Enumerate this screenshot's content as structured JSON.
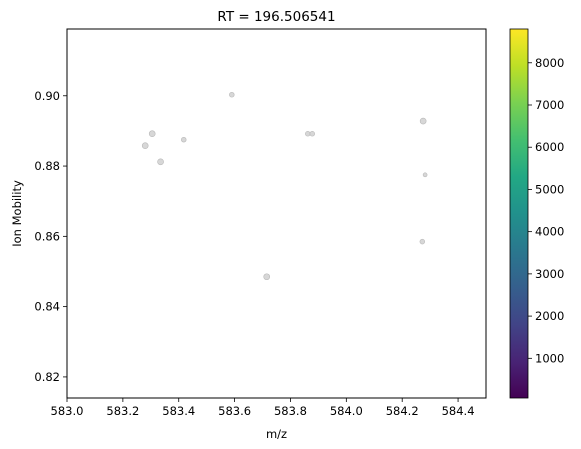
{
  "chart_data": {
    "type": "scatter",
    "title": "RT = 196.506541",
    "xlabel": "m/z",
    "ylabel": "Ion Mobility",
    "xlim": [
      583.0,
      584.5
    ],
    "ylim": [
      0.814,
      0.919
    ],
    "xticks": [
      "583.0",
      "583.2",
      "583.4",
      "583.6",
      "583.8",
      "584.0",
      "584.2",
      "584.4"
    ],
    "xtick_values": [
      583.0,
      583.2,
      583.4,
      583.6,
      583.8,
      584.0,
      584.2,
      584.4
    ],
    "yticks": [
      "0.82",
      "0.84",
      "0.86",
      "0.88",
      "0.90"
    ],
    "ytick_values": [
      0.82,
      0.84,
      0.86,
      0.88,
      0.9
    ],
    "grid": false,
    "points": [
      {
        "x": 583.28,
        "y": 0.8858,
        "size": 3.0
      },
      {
        "x": 583.305,
        "y": 0.8892,
        "size": 3.0
      },
      {
        "x": 583.335,
        "y": 0.8812,
        "size": 3.0
      },
      {
        "x": 583.418,
        "y": 0.8875,
        "size": 2.4
      },
      {
        "x": 583.59,
        "y": 0.9003,
        "size": 2.4
      },
      {
        "x": 583.715,
        "y": 0.8485,
        "size": 3.0
      },
      {
        "x": 583.862,
        "y": 0.8892,
        "size": 2.4
      },
      {
        "x": 583.878,
        "y": 0.8892,
        "size": 2.4
      },
      {
        "x": 584.275,
        "y": 0.8928,
        "size": 3.0
      },
      {
        "x": 584.282,
        "y": 0.8775,
        "size": 2.0
      },
      {
        "x": 584.272,
        "y": 0.8585,
        "size": 2.4
      }
    ],
    "point_color": "#d0d0d0",
    "point_edge_color": "#b8b8b8",
    "colorbar": {
      "colormap": "viridis",
      "range": [
        60,
        8800
      ],
      "ticks": [
        "1000",
        "2000",
        "3000",
        "4000",
        "5000",
        "6000",
        "7000",
        "8000"
      ],
      "tick_values": [
        1000,
        2000,
        3000,
        4000,
        5000,
        6000,
        7000,
        8000
      ]
    }
  }
}
